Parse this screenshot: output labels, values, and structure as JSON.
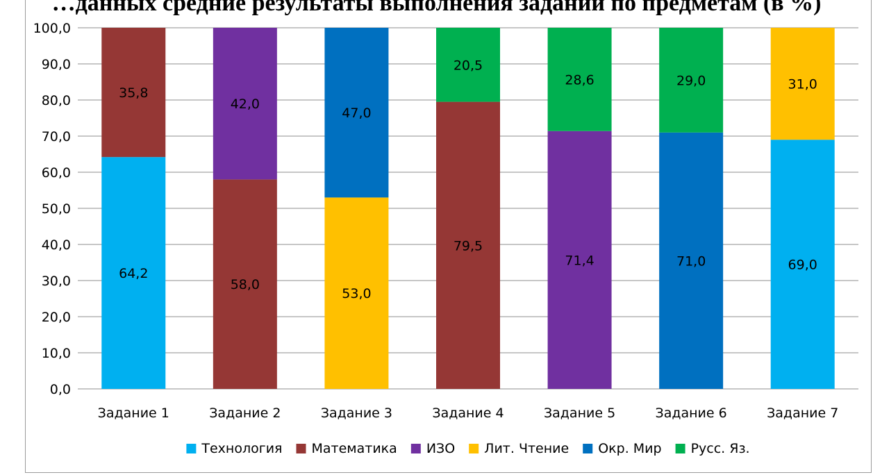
{
  "chart_data": {
    "type": "bar",
    "stacked": true,
    "title": "…данных средние результаты выполнения заданий по предметам (в %)",
    "xlabel": "",
    "ylabel": "",
    "ylim": [
      0,
      100
    ],
    "ytick_step": 10,
    "ytick_labels": [
      "0,0",
      "10,0",
      "20,0",
      "30,0",
      "40,0",
      "50,0",
      "60,0",
      "70,0",
      "80,0",
      "90,0",
      "100,0"
    ],
    "grid": true,
    "legend_position": "bottom",
    "categories": [
      "Задание 1",
      "Задание 2",
      "Задание 3",
      "Задание 4",
      "Задание 5",
      "Задание 6",
      "Задание 7"
    ],
    "series": [
      {
        "name": "Технология",
        "color": "#00b0f0",
        "values": [
          64.2,
          null,
          null,
          null,
          null,
          null,
          69.0
        ],
        "labels": [
          "64,2",
          null,
          null,
          null,
          null,
          null,
          "69,0"
        ]
      },
      {
        "name": "Математика",
        "color": "#953735",
        "values": [
          35.8,
          58.0,
          null,
          79.5,
          null,
          null,
          null
        ],
        "labels": [
          "35,8",
          "58,0",
          null,
          "79,5",
          null,
          null,
          null
        ]
      },
      {
        "name": "ИЗО",
        "color": "#7030a0",
        "values": [
          null,
          42.0,
          null,
          null,
          71.4,
          null,
          null
        ],
        "labels": [
          null,
          "42,0",
          null,
          null,
          "71,4",
          null,
          null
        ]
      },
      {
        "name": "Лит. Чтение",
        "color": "#ffc000",
        "values": [
          null,
          null,
          53.0,
          null,
          null,
          null,
          31.0
        ],
        "labels": [
          null,
          null,
          "53,0",
          null,
          null,
          null,
          "31,0"
        ]
      },
      {
        "name": "Окр. Мир",
        "color": "#0070c0",
        "values": [
          null,
          null,
          47.0,
          null,
          null,
          71.0,
          null
        ],
        "labels": [
          null,
          null,
          "47,0",
          null,
          null,
          "71,0",
          null
        ]
      },
      {
        "name": "Русс. Яз.",
        "color": "#00b050",
        "values": [
          null,
          null,
          null,
          20.5,
          28.6,
          29.0,
          null
        ],
        "labels": [
          null,
          null,
          null,
          "20,5",
          "28,6",
          "29,0",
          null
        ]
      }
    ]
  }
}
